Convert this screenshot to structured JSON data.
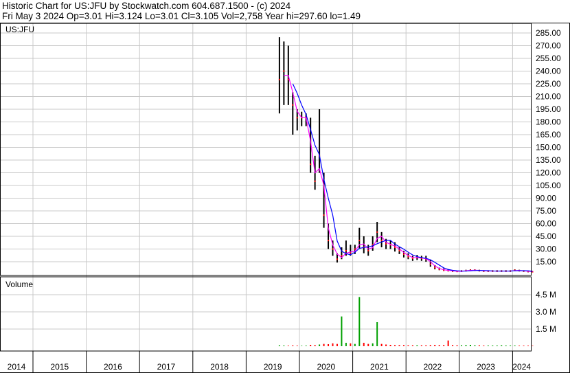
{
  "header": {
    "title": "Historic Chart for US:JFU by Stockwatch.com 604.687.1500 - (c) 2024",
    "quote": "Fri May  3 2024  Op=3.01  Hi=3.124  Lo=3.01  Cl=3.105  Vol=2,758  Year hi=297.60  lo=1.49"
  },
  "chart_data": [
    {
      "type": "line",
      "title": "US:JFU",
      "style": "high-low bars with close markers and two moving averages",
      "colors": {
        "bars": "#000000",
        "close": "#ff0000",
        "ma_short": "#ff00ff",
        "ma_long": "#0000ff",
        "grid": "#c8c8c8"
      },
      "ylim": [
        0,
        295
      ],
      "yticks": [
        "285.00",
        "270.00",
        "255.00",
        "240.00",
        "225.00",
        "210.00",
        "195.00",
        "180.00",
        "165.00",
        "150.00",
        "135.00",
        "120.00",
        "105.00",
        "90.00",
        "75.00",
        "60.00",
        "45.00",
        "30.00",
        "15.00"
      ],
      "ytick_values": [
        285,
        270,
        255,
        240,
        225,
        210,
        195,
        180,
        165,
        150,
        135,
        120,
        105,
        90,
        75,
        60,
        45,
        30,
        15
      ],
      "grid": true,
      "dates": [
        "2019-08",
        "2019-09",
        "2019-10",
        "2019-11",
        "2019-12",
        "2020-01",
        "2020-02",
        "2020-03",
        "2020-04",
        "2020-05",
        "2020-06",
        "2020-07",
        "2020-08",
        "2020-09",
        "2020-10",
        "2020-11",
        "2020-12",
        "2021-01",
        "2021-02",
        "2021-03",
        "2021-04",
        "2021-05",
        "2021-06",
        "2021-07",
        "2021-08",
        "2021-09",
        "2021-10",
        "2021-11",
        "2021-12",
        "2022-01",
        "2022-02",
        "2022-03",
        "2022-04",
        "2022-05",
        "2022-06",
        "2022-07",
        "2022-08",
        "2022-09",
        "2022-10",
        "2022-11",
        "2022-12",
        "2023-01",
        "2023-02",
        "2023-03",
        "2023-04",
        "2023-05",
        "2023-06",
        "2023-07",
        "2023-08",
        "2023-09",
        "2023-10",
        "2023-11",
        "2023-12",
        "2024-01",
        "2024-02",
        "2024-03",
        "2024-04",
        "2024-05"
      ],
      "close": [
        230,
        240,
        230,
        200,
        185,
        185,
        185,
        130,
        110,
        140,
        70,
        40,
        30,
        18,
        22,
        28,
        25,
        30,
        40,
        32,
        28,
        35,
        50,
        40,
        36,
        35,
        32,
        28,
        24,
        21,
        19,
        20,
        19,
        18,
        12,
        8,
        6,
        5,
        4.5,
        4,
        3.5,
        4,
        4.5,
        5,
        5,
        4.5,
        4,
        4,
        4,
        4,
        4,
        4,
        4,
        5,
        4.5,
        4,
        3.5,
        3.1
      ],
      "high": [
        280,
        275,
        270,
        215,
        195,
        192,
        190,
        185,
        140,
        195,
        120,
        60,
        40,
        25,
        32,
        40,
        35,
        35,
        55,
        45,
        35,
        45,
        62,
        50,
        42,
        40,
        38,
        32,
        28,
        25,
        22,
        23,
        22,
        22,
        17,
        11,
        8,
        7,
        6,
        5,
        4.5,
        5,
        5.5,
        6,
        6,
        5.5,
        5,
        5,
        5,
        5,
        5,
        5,
        5,
        6,
        5.5,
        5,
        4.5,
        3.2
      ],
      "low": [
        190,
        200,
        200,
        165,
        170,
        175,
        175,
        120,
        100,
        120,
        55,
        30,
        22,
        14,
        18,
        22,
        22,
        24,
        30,
        25,
        22,
        28,
        38,
        32,
        30,
        30,
        27,
        24,
        20,
        18,
        16,
        17,
        16,
        15,
        9,
        6,
        5,
        4,
        3.5,
        3,
        3,
        3,
        3.5,
        4,
        4,
        3.5,
        3,
        3,
        3,
        3,
        3,
        3,
        3,
        4,
        3.5,
        3,
        2.5,
        3.0
      ]
    },
    {
      "type": "bar",
      "title": "Volume",
      "yticks": [
        "4.5 M",
        "3.0 M",
        "1.5 M"
      ],
      "ytick_values": [
        4.5,
        3.0,
        1.5
      ],
      "colors": {
        "up": "#00a000",
        "down": "#ff0000"
      },
      "values_millions": [
        0.08,
        0.06,
        0.05,
        0.07,
        0.05,
        0.04,
        0.05,
        0.12,
        0.1,
        0.15,
        0.2,
        0.18,
        0.25,
        0.2,
        2.6,
        0.3,
        0.25,
        0.2,
        4.3,
        0.3,
        0.2,
        0.25,
        2.1,
        0.2,
        0.15,
        0.12,
        0.1,
        0.1,
        0.1,
        0.08,
        0.08,
        0.08,
        0.08,
        0.08,
        0.1,
        0.12,
        0.1,
        0.1,
        0.5,
        0.1,
        0.08,
        0.08,
        0.1,
        0.12,
        0.08,
        0.08,
        0.06,
        0.06,
        0.06,
        0.06,
        0.08,
        0.06,
        0.06,
        0.06,
        0.05,
        0.05,
        0.05,
        0.04
      ]
    }
  ],
  "xaxis": {
    "years": [
      "2014",
      "2015",
      "2016",
      "2017",
      "2018",
      "2019",
      "2020",
      "2021",
      "2022",
      "2023",
      "2024"
    ]
  }
}
